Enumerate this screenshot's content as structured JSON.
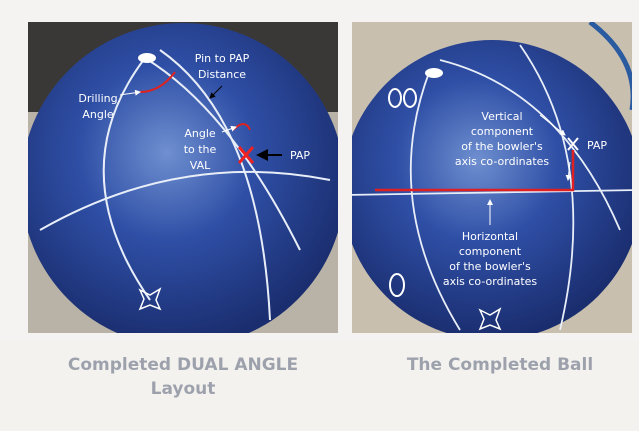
{
  "panels": [
    {
      "labels": [
        [
          "Pin to PAP",
          "Distance"
        ],
        [
          "Drilling",
          "Angle"
        ],
        [
          "Angle",
          "to the",
          "VAL"
        ],
        [
          "PAP"
        ]
      ],
      "caption": [
        "Completed DUAL ANGLE",
        "Layout"
      ]
    },
    {
      "labels": [
        [
          "Vertical",
          "component",
          "of the bowler's",
          "axis co-ordinates"
        ],
        [
          "PAP"
        ],
        [
          "Horizontal",
          "component",
          "of the bowler's",
          "axis co-ordinates"
        ]
      ],
      "caption": [
        "The Completed Ball"
      ]
    }
  ]
}
